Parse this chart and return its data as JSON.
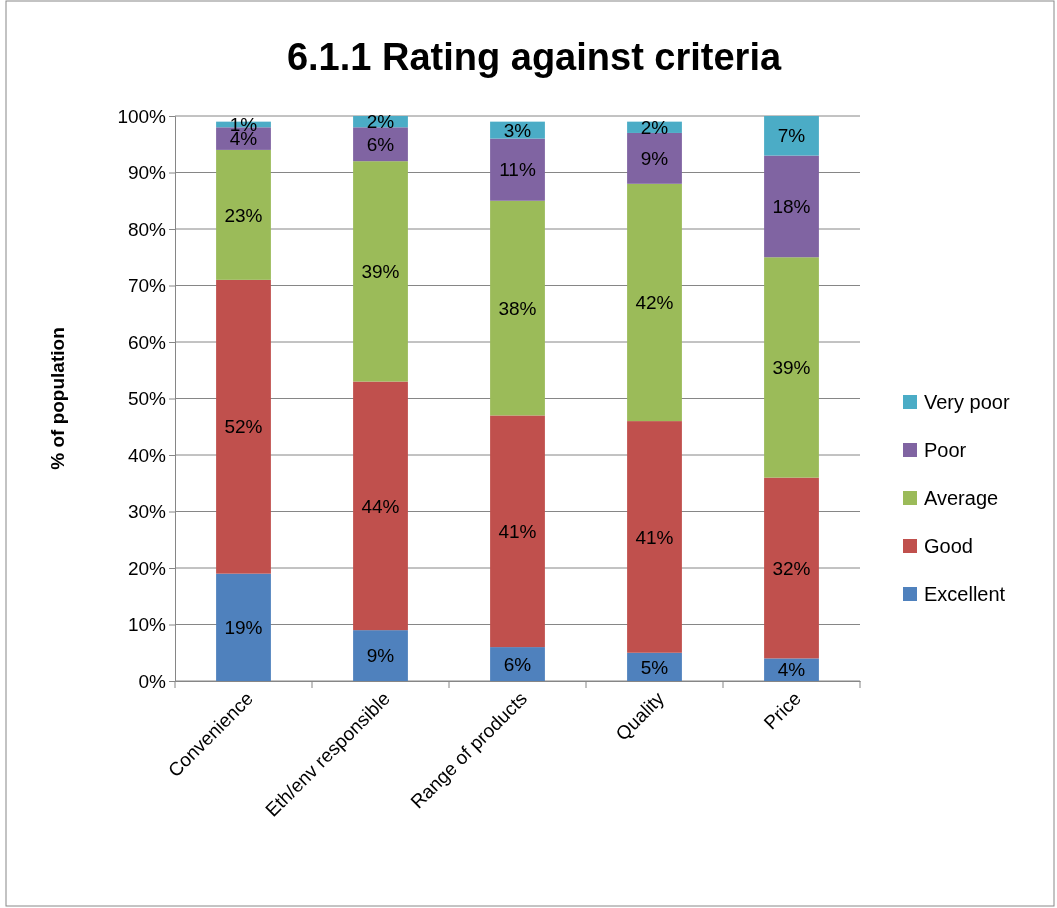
{
  "chart_data": {
    "type": "bar",
    "title": "6.1.1 Rating against criteria",
    "ylabel": "% of population",
    "categories": [
      "Convenience",
      "Eth/env responsible",
      "Range of products",
      "Quality",
      "Price"
    ],
    "stacked": true,
    "series": [
      {
        "name": "Excellent",
        "color": "#4f81bd",
        "values": [
          19,
          9,
          6,
          5,
          4
        ],
        "value_labels": [
          "19%",
          "9%",
          "6%",
          "5%",
          "4%"
        ]
      },
      {
        "name": "Good",
        "color": "#c0504d",
        "values": [
          52,
          44,
          41,
          41,
          32
        ],
        "value_labels": [
          "52%",
          "44%",
          "41%",
          "41%",
          "32%"
        ]
      },
      {
        "name": "Average",
        "color": "#9bbb59",
        "values": [
          23,
          39,
          38,
          42,
          39
        ],
        "value_labels": [
          "23%",
          "39%",
          "38%",
          "42%",
          "39%"
        ]
      },
      {
        "name": "Poor",
        "color": "#8064a2",
        "values": [
          4,
          6,
          11,
          9,
          18
        ],
        "value_labels": [
          "4%",
          "6%",
          "11%",
          "9%",
          "18%"
        ]
      },
      {
        "name": "Very poor",
        "color": "#4bacc6",
        "values": [
          1,
          2,
          3,
          2,
          7
        ],
        "value_labels": [
          "1%",
          "2%",
          "3%",
          "2%",
          "7%"
        ]
      }
    ],
    "ylim": [
      0,
      100
    ],
    "yticks": [
      {
        "value": 0,
        "label": "0%"
      },
      {
        "value": 10,
        "label": "10%"
      },
      {
        "value": 20,
        "label": "20%"
      },
      {
        "value": 30,
        "label": "30%"
      },
      {
        "value": 40,
        "label": "40%"
      },
      {
        "value": 50,
        "label": "50%"
      },
      {
        "value": 60,
        "label": "60%"
      },
      {
        "value": 70,
        "label": "70%"
      },
      {
        "value": 80,
        "label": "80%"
      },
      {
        "value": 90,
        "label": "90%"
      },
      {
        "value": 100,
        "label": "100%"
      }
    ],
    "grid": "y",
    "legend": "right"
  }
}
